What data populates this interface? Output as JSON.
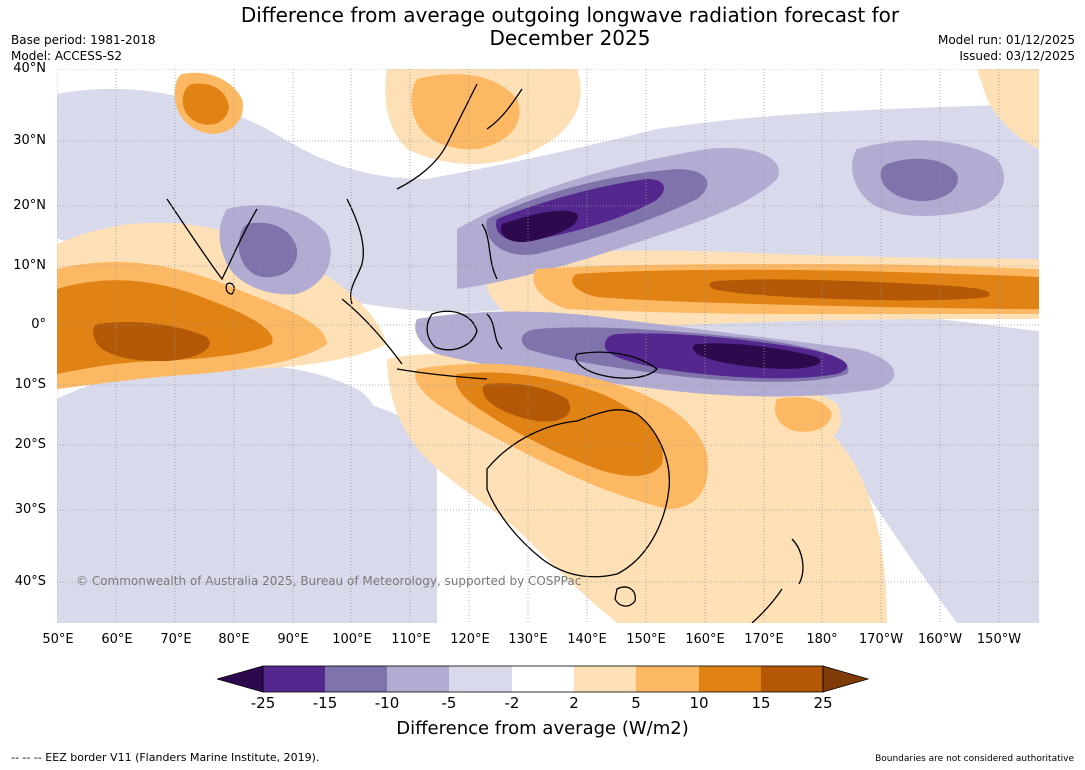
{
  "title": {
    "line1": "Difference from average outgoing longwave radiation forecast for",
    "line2": "December 2025"
  },
  "meta": {
    "base_period": "Base period: 1981-2018",
    "model": "Model: ACCESS-S2",
    "model_run": "Model run: 01/12/2025",
    "issued": "Issued: 03/12/2025"
  },
  "map": {
    "copyright": "© Commonwealth of Australia 2025, Bureau of Meteorology, supported by COSPPac",
    "lat_labels": [
      "40°N",
      "30°N",
      "20°N",
      "10°N",
      "0°",
      "10°S",
      "20°S",
      "30°S",
      "40°S"
    ],
    "lon_labels": [
      "50°E",
      "60°E",
      "70°E",
      "80°E",
      "90°E",
      "100°E",
      "110°E",
      "120°E",
      "130°E",
      "140°E",
      "150°E",
      "160°E",
      "170°E",
      "180°",
      "170°W",
      "160°W",
      "150°W"
    ]
  },
  "colorbar": {
    "title": "Difference from average (W/m2)",
    "ticks": [
      "-25",
      "-15",
      "-10",
      "-5",
      "-2",
      "2",
      "5",
      "10",
      "15",
      "25"
    ],
    "colors": [
      "#2d0a4e",
      "#54278f",
      "#8073ac",
      "#b2abd2",
      "#d8daeb",
      "#ffffff",
      "#fee0b6",
      "#fdb863",
      "#e08214",
      "#b35806",
      "#7f3b08"
    ]
  },
  "footer": {
    "eez_note": "--  --  -- EEZ border V11 (Flanders Marine Institute, 2019).",
    "boundaries_note": "Boundaries are not considered authoritative"
  }
}
